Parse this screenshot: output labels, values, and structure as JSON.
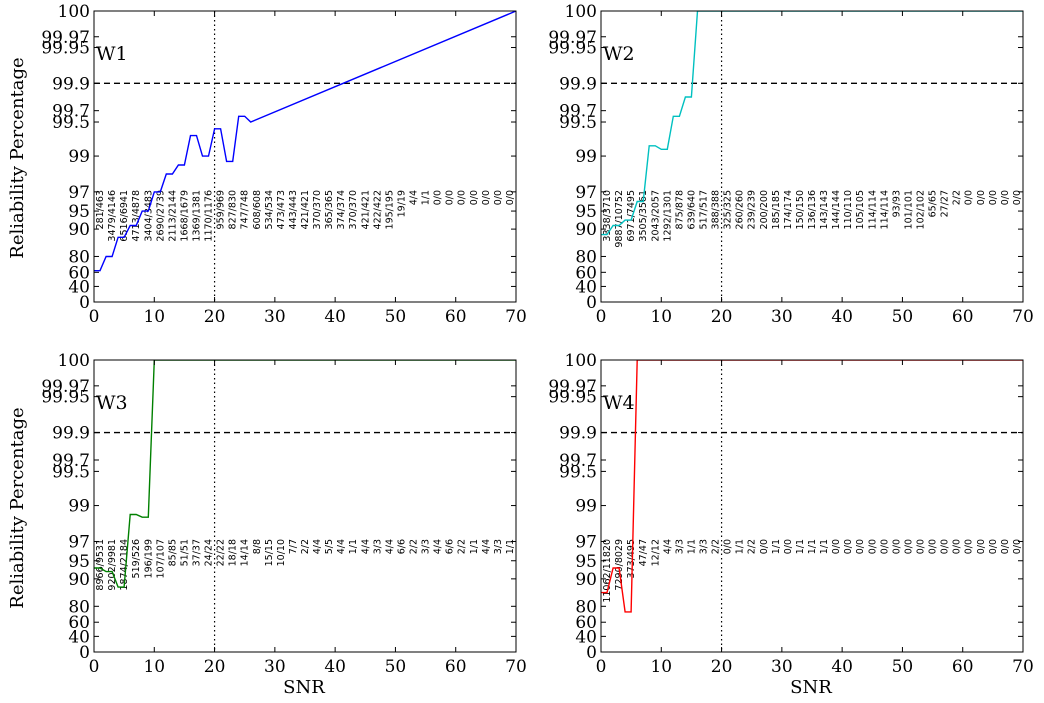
{
  "chart_data": [
    {
      "type": "line",
      "title": "W1",
      "color": "#0000ff",
      "xlabel": "",
      "ylabel": "Reliability Percentage",
      "xlim": [
        0,
        70
      ],
      "xticks": [
        0,
        10,
        20,
        30,
        40,
        50,
        60,
        70
      ],
      "ytick_labels": [
        "0",
        "40",
        "60",
        "80",
        "90",
        "95",
        "97",
        "99",
        "99.5",
        "99.7",
        "99.9",
        "99.95",
        "99.97",
        "100"
      ],
      "y_scale": "nonlinear reliability scale (percent)",
      "reference_lines": {
        "horizontal_dashed": 99.9,
        "vertical_dotted": 20
      },
      "series": [
        {
          "x": [
            0,
            1,
            2,
            3,
            4,
            5,
            6,
            7,
            8,
            9,
            10,
            11,
            12,
            13,
            14,
            15,
            16,
            17,
            18,
            19,
            20,
            21,
            22,
            23,
            24,
            25,
            26,
            70
          ],
          "y": [
            62,
            62,
            80,
            80,
            87,
            87,
            91,
            91,
            95,
            95,
            97,
            97,
            98,
            98,
            98.5,
            98.5,
            99.3,
            99.3,
            99.0,
            99.0,
            99.4,
            99.4,
            98.7,
            98.7,
            99.6,
            99.6,
            99.5,
            100
          ]
        }
      ],
      "bin_labels": [
        "281/463",
        "3479/4146",
        "6516/6941",
        "4713/4878",
        "3404/3483",
        "2690/2739",
        "2113/2144",
        "1668/1679",
        "1369/1381",
        "1170/1176",
        "959/969",
        "827/830",
        "747/748",
        "608/608",
        "534/534",
        "473/473",
        "443/443",
        "421/421",
        "370/370",
        "365/365",
        "374/374",
        "370/370",
        "421/421",
        "422/422",
        "195/195",
        "19/19",
        "4/4",
        "1/1",
        "0/0",
        "0/0",
        "0/0",
        "0/0",
        "0/0",
        "0/0",
        "0/0"
      ]
    },
    {
      "type": "line",
      "title": "W2",
      "color": "#00c0c0",
      "xlabel": "",
      "ylabel": "",
      "xlim": [
        0,
        70
      ],
      "xticks": [
        0,
        10,
        20,
        30,
        40,
        50,
        60,
        70
      ],
      "ytick_labels": [
        "0",
        "40",
        "60",
        "80",
        "90",
        "95",
        "97",
        "99",
        "99.5",
        "99.7",
        "99.9",
        "99.95",
        "99.97",
        "100"
      ],
      "y_scale": "nonlinear reliability scale (percent)",
      "reference_lines": {
        "horizontal_dashed": 99.9,
        "vertical_dotted": 20
      },
      "series": [
        {
          "x": [
            0,
            1,
            2,
            3,
            4,
            5,
            6,
            7,
            8,
            9,
            10,
            11,
            12,
            13,
            14,
            15,
            16,
            70
          ],
          "y": [
            88,
            88,
            91,
            91,
            92.5,
            92.5,
            96,
            96,
            99.15,
            99.15,
            99.1,
            99.1,
            99.6,
            99.6,
            99.8,
            99.8,
            100,
            100
          ]
        }
      ],
      "bin_labels": [
        "3338/3710",
        "9887/10752",
        "6971/7495",
        "3505/3561",
        "2043/2057",
        "1292/1301",
        "875/878",
        "639/640",
        "517/517",
        "388/388",
        "325/325",
        "260/260",
        "239/239",
        "200/200",
        "185/185",
        "174/174",
        "150/150",
        "136/136",
        "143/143",
        "144/144",
        "110/110",
        "105/105",
        "114/114",
        "114/114",
        "93/93",
        "101/101",
        "102/102",
        "65/65",
        "27/27",
        "2/2",
        "0/0",
        "0/0",
        "0/0",
        "0/0",
        "0/0"
      ]
    },
    {
      "type": "line",
      "title": "W3",
      "color": "#008000",
      "xlabel": "SNR",
      "ylabel": "Reliability Percentage",
      "xlim": [
        0,
        70
      ],
      "xticks": [
        0,
        10,
        20,
        30,
        40,
        50,
        60,
        70
      ],
      "ytick_labels": [
        "0",
        "40",
        "60",
        "80",
        "90",
        "95",
        "97",
        "99",
        "99.5",
        "99.7",
        "99.9",
        "99.95",
        "99.97",
        "100"
      ],
      "y_scale": "nonlinear reliability scale (percent)",
      "reference_lines": {
        "horizontal_dashed": 99.9,
        "vertical_dotted": 20
      },
      "series": [
        {
          "x": [
            0,
            1,
            2,
            3,
            4,
            5,
            6,
            7,
            8,
            9,
            10,
            70
          ],
          "y": [
            93,
            93,
            92,
            92,
            87,
            87,
            98.5,
            98.5,
            98.35,
            98.35,
            100,
            100
          ]
        }
      ],
      "bin_labels": [
        "8966/9531",
        "9202/9981",
        "1874/2184",
        "519/526",
        "196/199",
        "107/107",
        "85/85",
        "51/51",
        "37/37",
        "24/24",
        "22/22",
        "18/18",
        "14/14",
        "8/8",
        "15/15",
        "10/10",
        "7/7",
        "2/2",
        "4/4",
        "5/5",
        "4/4",
        "1/1",
        "4/4",
        "3/3",
        "4/4",
        "6/6",
        "2/2",
        "3/3",
        "4/4",
        "6/6",
        "2/2",
        "1/1",
        "4/4",
        "3/3",
        "1/1"
      ]
    },
    {
      "type": "line",
      "title": "W4",
      "color": "#ff0000",
      "xlabel": "SNR",
      "ylabel": "",
      "xlim": [
        0,
        70
      ],
      "xticks": [
        0,
        10,
        20,
        30,
        40,
        50,
        60,
        70
      ],
      "ytick_labels": [
        "0",
        "40",
        "60",
        "80",
        "90",
        "95",
        "97",
        "99",
        "99.5",
        "99.7",
        "99.9",
        "99.95",
        "99.97",
        "100"
      ],
      "y_scale": "nonlinear reliability scale (percent)",
      "reference_lines": {
        "horizontal_dashed": 99.9,
        "vertical_dotted": 20
      },
      "series": [
        {
          "x": [
            0,
            1,
            2,
            3,
            4,
            5,
            6,
            70
          ],
          "y": [
            85,
            85,
            93,
            93,
            73,
            73,
            100,
            100
          ]
        }
      ],
      "bin_labels": [
        "11062/11820",
        "7290/8029",
        "373/495",
        "47/47",
        "12/12",
        "4/4",
        "3/3",
        "1/1",
        "3/3",
        "2/2",
        "0/0",
        "1/1",
        "2/2",
        "0/0",
        "1/1",
        "0/0",
        "1/1",
        "1/1",
        "1/1",
        "0/0",
        "0/0",
        "0/0",
        "0/0",
        "0/0",
        "0/0",
        "0/0",
        "0/0",
        "0/0",
        "0/0",
        "0/0",
        "0/0",
        "0/0",
        "0/0",
        "0/0",
        "0/0"
      ]
    }
  ]
}
